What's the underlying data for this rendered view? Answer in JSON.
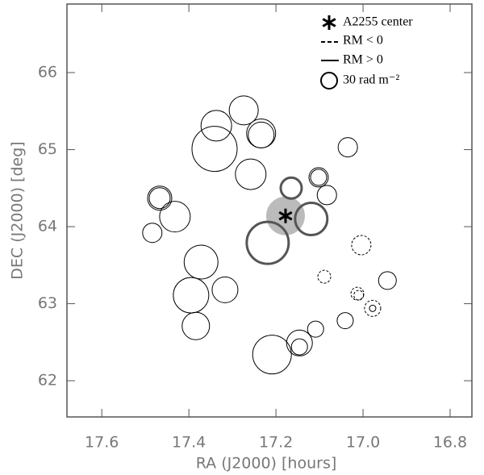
{
  "chart_data": {
    "type": "bubble",
    "xlabel": "RA (J2000) [hours]",
    "ylabel": "DEC (J2000) [deg]",
    "xlim": [
      17.68,
      16.75
    ],
    "ylim": [
      61.53,
      66.89
    ],
    "xticks": [
      17.6,
      17.4,
      17.2,
      {
        "value": 17,
        "label": "17.0"
      },
      16.8
    ],
    "yticks": [
      62,
      63,
      64,
      65,
      66
    ],
    "size_reference": {
      "value": 30,
      "label": "30 rad m⁻²"
    },
    "center": {
      "x": 17.178,
      "y": 64.14,
      "label": "A2255 center"
    },
    "legend": [
      "RM < 0",
      "RM > 0"
    ],
    "series": [
      {
        "color": "#000000",
        "linewidth": 1,
        "x": [
          17.274,
          17.337,
          17.341,
          17.234,
          17.234,
          17.258,
          17.102,
          17.102,
          17.035,
          17.083,
          17.467,
          17.467,
          17.432,
          17.484,
          17.372,
          17.317,
          17.395,
          17.384,
          16.944,
          16.978,
          17.041,
          17.109,
          17.146,
          17.146,
          17.209
        ],
        "values": [
          65.51,
          65.31,
          65.01,
          65.21,
          65.19,
          64.68,
          64.64,
          64.64,
          65.03,
          64.41,
          64.37,
          64.37,
          64.13,
          63.92,
          63.54,
          63.18,
          63.11,
          62.71,
          63.3,
          62.94,
          62.78,
          62.67,
          62.49,
          62.44,
          62.34
        ],
        "sizes": [
          54,
          57,
          84,
          54,
          48,
          57,
          36,
          30,
          36,
          36,
          45,
          39,
          57,
          36,
          63,
          48,
          66,
          51,
          33,
          12,
          30,
          30,
          48,
          30,
          72
        ]
      },
      {
        "color": "#555555",
        "linewidth": 3,
        "x": [
          17.165,
          17.119,
          17.219
        ],
        "values": [
          64.5,
          64.1,
          63.79
        ],
        "sizes": [
          39,
          60,
          78
        ]
      },
      {
        "color": "#000000",
        "linewidth": 1,
        "x": [
          17.089,
          17.004,
          17.013,
          17.01,
          16.978
        ],
        "values": [
          63.35,
          63.76,
          63.13,
          63.11,
          62.94
        ],
        "sizes": [
          -24,
          -36,
          -24,
          -18,
          -30
        ]
      }
    ]
  }
}
